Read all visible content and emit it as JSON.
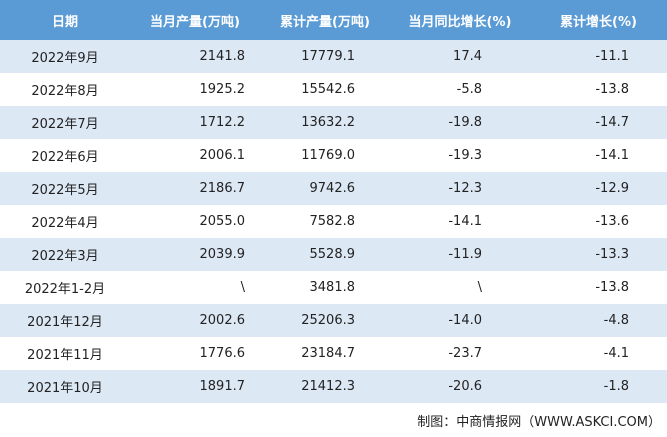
{
  "table": {
    "columns": [
      "日期",
      "当月产量(万吨)",
      "累计产量(万吨)",
      "当月同比增长(%)",
      "累计增长(%)"
    ],
    "rows": [
      [
        "2022年9月",
        "2141.8",
        "17779.1",
        "17.4",
        "-11.1"
      ],
      [
        "2022年8月",
        "1925.2",
        "15542.6",
        "-5.8",
        "-13.8"
      ],
      [
        "2022年7月",
        "1712.2",
        "13632.2",
        "-19.8",
        "-14.7"
      ],
      [
        "2022年6月",
        "2006.1",
        "11769.0",
        "-19.3",
        "-14.1"
      ],
      [
        "2022年5月",
        "2186.7",
        "9742.6",
        "-12.3",
        "-12.9"
      ],
      [
        "2022年4月",
        "2055.0",
        "7582.8",
        "-14.1",
        "-13.6"
      ],
      [
        "2022年3月",
        "2039.9",
        "5528.9",
        "-11.9",
        "-13.3"
      ],
      [
        "2022年1-2月",
        "\\",
        "3481.8",
        "\\",
        "-13.8"
      ],
      [
        "2021年12月",
        "2002.6",
        "25206.3",
        "-14.0",
        "-4.8"
      ],
      [
        "2021年11月",
        "1776.6",
        "23184.7",
        "-23.7",
        "-4.1"
      ],
      [
        "2021年10月",
        "1891.7",
        "21412.3",
        "-20.6",
        "-1.8"
      ]
    ]
  },
  "footer": "制图：中商情报网（WWW.ASKCI.COM）"
}
